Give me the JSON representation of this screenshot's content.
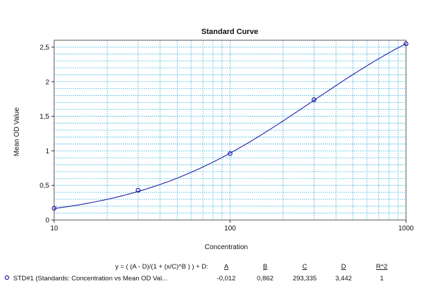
{
  "chart_data": {
    "type": "scatter",
    "title": "Standard Curve",
    "xlabel": "Concentration",
    "ylabel": "Mean OD Value",
    "x_scale": "log",
    "xlim": [
      10,
      1000
    ],
    "ylim": [
      0,
      2.6
    ],
    "x_ticks": [
      {
        "value": 10,
        "label": "10"
      },
      {
        "value": 100,
        "label": "100"
      },
      {
        "value": 1000,
        "label": "1000"
      }
    ],
    "y_ticks": [
      {
        "value": 0,
        "label": "0"
      },
      {
        "value": 0.5,
        "label": "0,5"
      },
      {
        "value": 1,
        "label": "1"
      },
      {
        "value": 1.5,
        "label": "1,5"
      },
      {
        "value": 2,
        "label": "2"
      },
      {
        "value": 2.5,
        "label": "2,5"
      }
    ],
    "grid": true,
    "series": [
      {
        "x": [
          10,
          30,
          100,
          300,
          1000
        ],
        "y": [
          0.17,
          0.43,
          0.96,
          1.74,
          2.55
        ],
        "color": "#1e1ea8"
      }
    ],
    "fit": {
      "model": "4PL",
      "A": -0.012,
      "B": 0.862,
      "C": 293.335,
      "D": 3.442,
      "color": "#1e1ea8"
    },
    "legend": {
      "position": "bottom",
      "equation": "y = ( (A - D)/(1 + (x/C)^B ) ) + D:",
      "headers": [
        "A",
        "B",
        "C",
        "D",
        "R^2"
      ],
      "entry_label": "STD#1 (Standards: Concentration vs Mean OD Val...",
      "values": [
        "-0,012",
        "0,862",
        "293,335",
        "3,442",
        "1"
      ]
    }
  }
}
